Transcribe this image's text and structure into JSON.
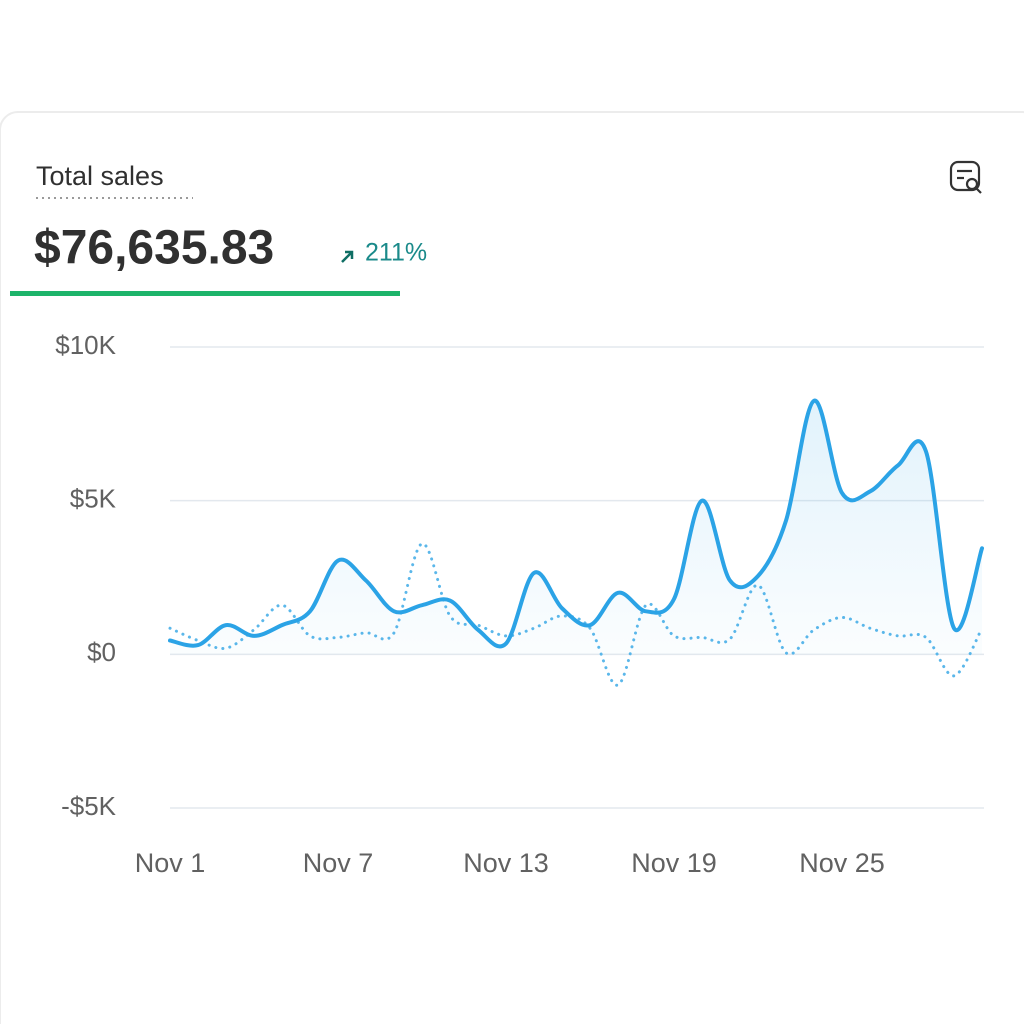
{
  "chart_data": {
    "type": "line",
    "title": "Total sales",
    "total": "$76,635.83",
    "change": "211%",
    "categories": [
      "Nov 1",
      null,
      null,
      null,
      null,
      null,
      "Nov 7",
      null,
      null,
      null,
      null,
      null,
      "Nov 13",
      null,
      null,
      null,
      null,
      null,
      "Nov 19",
      null,
      null,
      null,
      null,
      null,
      "Nov 25",
      null,
      null,
      null,
      null,
      null
    ],
    "series": [
      {
        "color": "#2ba3e6",
        "style": "solid",
        "area": true,
        "values": [
          450,
          300,
          950,
          600,
          950,
          1400,
          3050,
          2400,
          1400,
          1600,
          1750,
          800,
          350,
          2650,
          1500,
          950,
          2000,
          1400,
          1800,
          5000,
          2400,
          2550,
          4350,
          8250,
          5250,
          5300,
          6150,
          6600,
          850,
          3450
        ]
      },
      {
        "color": "#5bb7ea",
        "style": "dotted",
        "area": false,
        "values": [
          850,
          450,
          200,
          800,
          1600,
          600,
          550,
          700,
          700,
          3600,
          1250,
          950,
          600,
          850,
          1250,
          850,
          -1000,
          1600,
          600,
          550,
          500,
          2250,
          50,
          800,
          1200,
          850,
          600,
          550,
          -700,
          850
        ]
      }
    ],
    "ylim": [
      -5000,
      10000
    ],
    "yticks": [
      {
        "value": -5000,
        "label": "-$5K"
      },
      {
        "value": 0,
        "label": "$0"
      },
      {
        "value": 5000,
        "label": "$5K"
      },
      {
        "value": 10000,
        "label": "$10K"
      }
    ],
    "grid": true
  }
}
